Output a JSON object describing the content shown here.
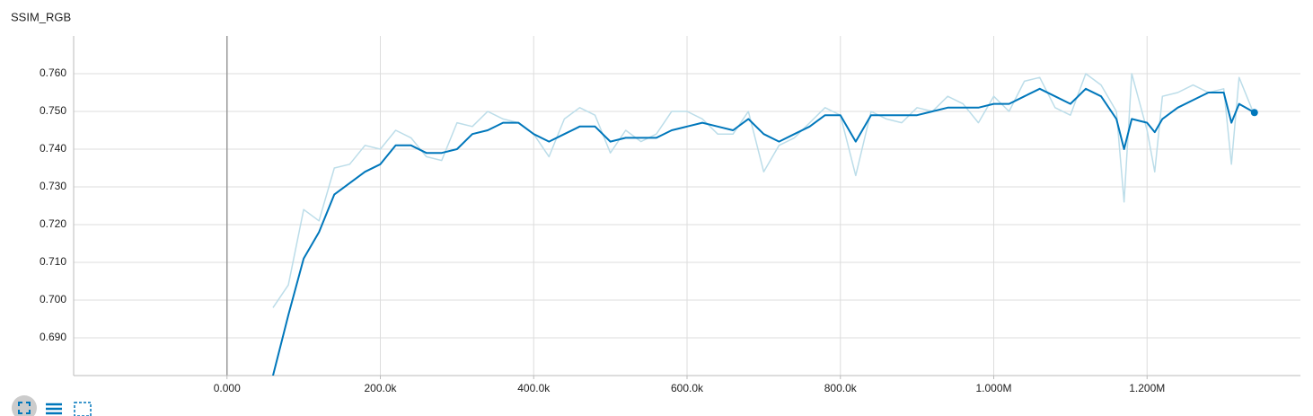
{
  "chart_data": {
    "type": "line",
    "title": "SSIM_RGB",
    "x": [
      60000,
      80000,
      100000,
      120000,
      140000,
      160000,
      180000,
      200000,
      220000,
      240000,
      260000,
      280000,
      300000,
      320000,
      340000,
      360000,
      380000,
      400000,
      420000,
      440000,
      460000,
      480000,
      500000,
      520000,
      540000,
      560000,
      580000,
      600000,
      620000,
      640000,
      660000,
      680000,
      700000,
      720000,
      740000,
      760000,
      780000,
      800000,
      820000,
      840000,
      860000,
      880000,
      900000,
      920000,
      940000,
      960000,
      980000,
      1000000,
      1020000,
      1040000,
      1060000,
      1080000,
      1100000,
      1120000,
      1140000,
      1160000,
      1170000,
      1180000,
      1200000,
      1210000,
      1220000,
      1240000,
      1260000,
      1280000,
      1300000,
      1310000,
      1320000,
      1340000
    ],
    "series": [
      {
        "color": "#bcdde9",
        "values": [
          0.698,
          0.704,
          0.724,
          0.721,
          0.735,
          0.736,
          0.741,
          0.74,
          0.745,
          0.743,
          0.738,
          0.737,
          0.747,
          0.746,
          0.75,
          0.748,
          0.747,
          0.744,
          0.738,
          0.748,
          0.751,
          0.749,
          0.739,
          0.745,
          0.742,
          0.744,
          0.75,
          0.75,
          0.748,
          0.744,
          0.744,
          0.75,
          0.734,
          0.741,
          0.743,
          0.747,
          0.751,
          0.749,
          0.733,
          0.75,
          0.748,
          0.747,
          0.751,
          0.75,
          0.754,
          0.752,
          0.747,
          0.754,
          0.75,
          0.758,
          0.759,
          0.751,
          0.749,
          0.76,
          0.757,
          0.75,
          0.726,
          0.76,
          0.745,
          0.734,
          0.754,
          0.755,
          0.757,
          0.755,
          0.756,
          0.736,
          0.759,
          0.749
        ]
      },
      {
        "color": "#0077bb",
        "values": [
          0.68,
          0.696,
          0.711,
          0.718,
          0.728,
          0.731,
          0.734,
          0.736,
          0.741,
          0.741,
          0.739,
          0.739,
          0.74,
          0.744,
          0.745,
          0.747,
          0.747,
          0.744,
          0.742,
          0.744,
          0.746,
          0.746,
          0.742,
          0.743,
          0.743,
          0.743,
          0.745,
          0.746,
          0.747,
          0.746,
          0.745,
          0.748,
          0.744,
          0.742,
          0.744,
          0.746,
          0.749,
          0.749,
          0.742,
          0.749,
          0.749,
          0.749,
          0.749,
          0.75,
          0.751,
          0.751,
          0.751,
          0.752,
          0.752,
          0.754,
          0.756,
          0.754,
          0.752,
          0.756,
          0.754,
          0.748,
          0.74,
          0.748,
          0.747,
          0.7445,
          0.748,
          0.751,
          0.753,
          0.755,
          0.755,
          0.747,
          0.752,
          0.7497
        ]
      }
    ],
    "xlim": [
      -200000,
      1400000
    ],
    "xticks": [
      {
        "value": 0,
        "label": "0.000"
      },
      {
        "value": 200000,
        "label": "200.0k"
      },
      {
        "value": 400000,
        "label": "400.0k"
      },
      {
        "value": 600000,
        "label": "600.0k"
      },
      {
        "value": 800000,
        "label": "800.0k"
      },
      {
        "value": 1000000,
        "label": "1.000M"
      },
      {
        "value": 1200000,
        "label": "1.200M"
      }
    ],
    "ylim": [
      0.68,
      0.77
    ],
    "yticks": [
      {
        "value": 0.69,
        "label": "0.690"
      },
      {
        "value": 0.7,
        "label": "0.700"
      },
      {
        "value": 0.71,
        "label": "0.710"
      },
      {
        "value": 0.72,
        "label": "0.720"
      },
      {
        "value": 0.73,
        "label": "0.730"
      },
      {
        "value": 0.74,
        "label": "0.740"
      },
      {
        "value": 0.75,
        "label": "0.750"
      },
      {
        "value": 0.76,
        "label": "0.760"
      }
    ],
    "grid": true
  }
}
